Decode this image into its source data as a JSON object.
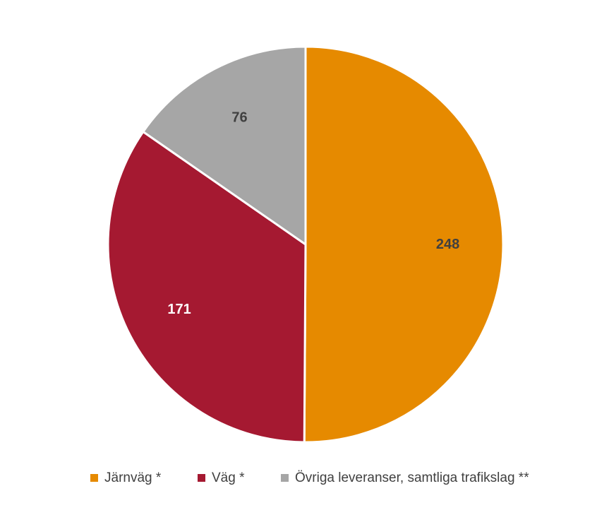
{
  "chart_data": {
    "type": "pie",
    "categories": [
      "Järnväg *",
      "Väg *",
      "Övriga leveranser, samtliga trafikslag **"
    ],
    "values": [
      248,
      171,
      76
    ],
    "colors": [
      "#e68a00",
      "#a51931",
      "#a6a6a6"
    ],
    "label_colors": [
      "#404040",
      "#ffffff",
      "#404040"
    ],
    "legend": "bottom"
  }
}
